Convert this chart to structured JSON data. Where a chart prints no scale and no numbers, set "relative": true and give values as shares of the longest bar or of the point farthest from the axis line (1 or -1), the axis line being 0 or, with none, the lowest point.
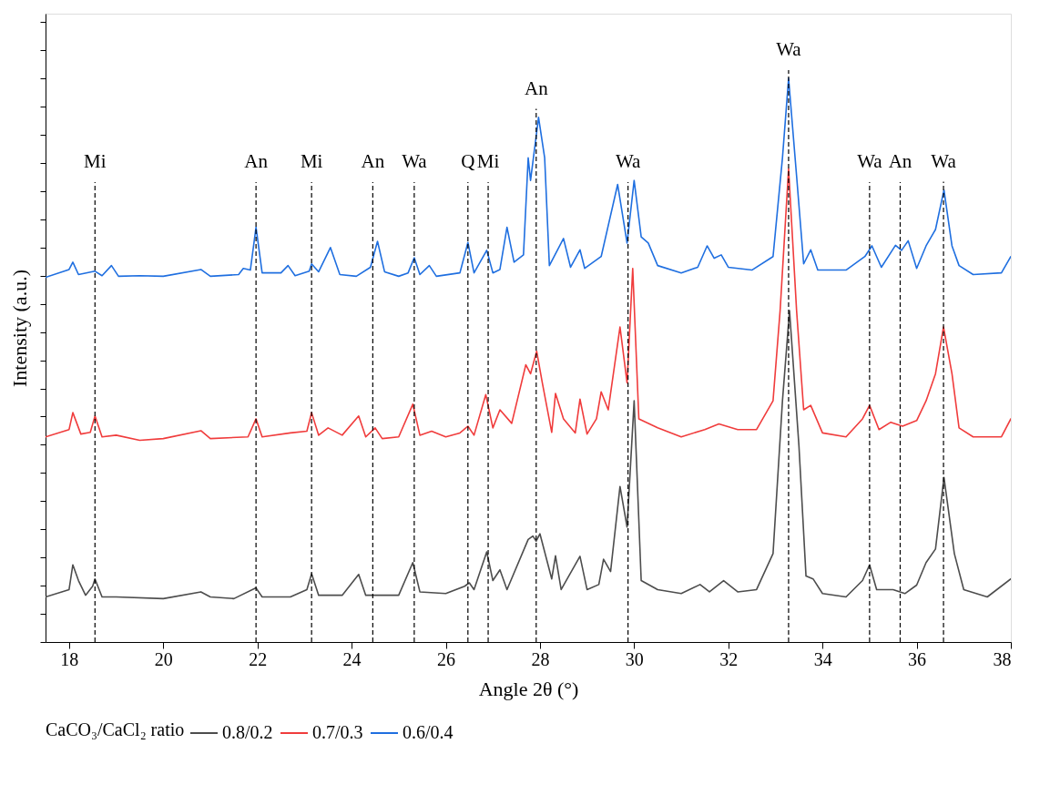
{
  "chart_data": {
    "type": "line",
    "relative": true,
    "xlabel": "Angle 2θ (°)",
    "ylabel": "Intensity (a.u.)",
    "legend_title": "CaCO₃/CaCl₂ ratio",
    "legend": "bottom",
    "tick_labels": "x",
    "line_style": "solid",
    "xlim": [
      17.5,
      38
    ],
    "xticks": [
      18,
      20,
      22,
      24,
      26,
      28,
      30,
      32,
      34,
      36,
      38
    ],
    "series": [
      {
        "name": "0.8/0.2",
        "color": "#4d4d4d",
        "x": [
          17.5,
          18.0,
          18.08,
          18.2,
          18.35,
          18.5,
          18.55,
          18.7,
          19.0,
          20.0,
          20.8,
          21.0,
          21.5,
          21.97,
          22.1,
          22.7,
          23.05,
          23.15,
          23.3,
          23.8,
          24.15,
          24.3,
          25.0,
          25.3,
          25.45,
          26.0,
          26.4,
          26.5,
          26.6,
          26.87,
          27.0,
          27.15,
          27.3,
          27.75,
          27.85,
          27.92,
          28.0,
          28.25,
          28.33,
          28.45,
          28.85,
          29.0,
          29.25,
          29.35,
          29.5,
          29.7,
          29.85,
          30.0,
          30.15,
          30.5,
          31.0,
          31.4,
          31.6,
          31.9,
          32.2,
          32.6,
          32.95,
          33.15,
          33.3,
          33.5,
          33.65,
          33.8,
          34.0,
          34.5,
          34.85,
          35.0,
          35.15,
          35.5,
          35.75,
          36.0,
          36.2,
          36.4,
          36.58,
          36.8,
          37.0,
          37.5,
          38.0
        ],
        "values": [
          0.08,
          0.093,
          0.137,
          0.109,
          0.083,
          0.099,
          0.112,
          0.08,
          0.08,
          0.077,
          0.089,
          0.08,
          0.077,
          0.096,
          0.08,
          0.08,
          0.093,
          0.121,
          0.083,
          0.083,
          0.12,
          0.083,
          0.083,
          0.141,
          0.089,
          0.086,
          0.099,
          0.105,
          0.093,
          0.16,
          0.109,
          0.128,
          0.093,
          0.182,
          0.188,
          0.179,
          0.192,
          0.112,
          0.153,
          0.093,
          0.152,
          0.093,
          0.102,
          0.147,
          0.125,
          0.276,
          0.204,
          0.428,
          0.109,
          0.093,
          0.086,
          0.102,
          0.089,
          0.109,
          0.089,
          0.093,
          0.157,
          0.428,
          0.588,
          0.348,
          0.117,
          0.112,
          0.086,
          0.08,
          0.109,
          0.137,
          0.093,
          0.093,
          0.086,
          0.101,
          0.141,
          0.165,
          0.292,
          0.157,
          0.093,
          0.08,
          0.112
        ]
      },
      {
        "name": "0.7/0.3",
        "color": "#f03c3c",
        "x": [
          17.5,
          18.0,
          18.08,
          18.25,
          18.45,
          18.55,
          18.7,
          19.0,
          19.5,
          20.0,
          20.8,
          21.0,
          21.8,
          21.97,
          22.1,
          22.7,
          23.05,
          23.15,
          23.3,
          23.5,
          23.8,
          24.15,
          24.3,
          24.5,
          24.65,
          25.0,
          25.3,
          25.45,
          25.7,
          26.0,
          26.3,
          26.47,
          26.6,
          26.85,
          27.0,
          27.15,
          27.4,
          27.7,
          27.8,
          27.93,
          28.05,
          28.25,
          28.33,
          28.5,
          28.75,
          28.85,
          29.0,
          29.2,
          29.3,
          29.45,
          29.7,
          29.85,
          29.97,
          30.1,
          30.5,
          31.0,
          31.5,
          31.8,
          32.2,
          32.6,
          32.95,
          33.1,
          33.28,
          33.45,
          33.6,
          33.75,
          34.0,
          34.5,
          34.85,
          35.0,
          35.2,
          35.45,
          35.7,
          36.0,
          36.2,
          36.4,
          36.57,
          36.75,
          36.9,
          37.2,
          37.8,
          38.0
        ],
        "values": [
          0.364,
          0.377,
          0.407,
          0.369,
          0.372,
          0.401,
          0.364,
          0.367,
          0.358,
          0.361,
          0.375,
          0.361,
          0.364,
          0.396,
          0.364,
          0.371,
          0.374,
          0.407,
          0.367,
          0.38,
          0.367,
          0.401,
          0.364,
          0.38,
          0.361,
          0.364,
          0.422,
          0.367,
          0.374,
          0.364,
          0.371,
          0.383,
          0.367,
          0.439,
          0.38,
          0.412,
          0.388,
          0.492,
          0.476,
          0.516,
          0.46,
          0.372,
          0.441,
          0.396,
          0.371,
          0.431,
          0.369,
          0.396,
          0.444,
          0.412,
          0.559,
          0.46,
          0.663,
          0.396,
          0.38,
          0.364,
          0.377,
          0.387,
          0.377,
          0.377,
          0.428,
          0.588,
          0.84,
          0.588,
          0.412,
          0.42,
          0.371,
          0.364,
          0.396,
          0.42,
          0.377,
          0.39,
          0.383,
          0.393,
          0.428,
          0.476,
          0.559,
          0.476,
          0.38,
          0.364,
          0.364,
          0.396
        ]
      },
      {
        "name": "0.6/0.4",
        "color": "#1f6fe0",
        "x": [
          17.5,
          18.0,
          18.08,
          18.2,
          18.55,
          18.7,
          18.9,
          19.05,
          19.5,
          20.0,
          20.8,
          21.0,
          21.6,
          21.7,
          21.85,
          21.97,
          22.1,
          22.5,
          22.65,
          22.8,
          23.1,
          23.15,
          23.3,
          23.55,
          23.75,
          24.1,
          24.4,
          24.55,
          24.7,
          25.0,
          25.2,
          25.33,
          25.45,
          25.65,
          25.8,
          26.3,
          26.47,
          26.6,
          26.87,
          27.0,
          27.15,
          27.3,
          27.45,
          27.65,
          27.75,
          27.8,
          27.97,
          28.1,
          28.2,
          28.5,
          28.65,
          28.85,
          28.95,
          29.3,
          29.65,
          29.85,
          30.0,
          30.15,
          30.3,
          30.5,
          31.0,
          31.35,
          31.55,
          31.7,
          31.85,
          32.0,
          32.5,
          32.95,
          33.15,
          33.28,
          33.45,
          33.6,
          33.75,
          33.9,
          34.5,
          34.9,
          35.05,
          35.25,
          35.55,
          35.68,
          35.82,
          36.0,
          36.2,
          36.4,
          36.58,
          36.75,
          36.9,
          37.2,
          37.8,
          38.0
        ],
        "values": [
          0.647,
          0.661,
          0.674,
          0.652,
          0.658,
          0.65,
          0.668,
          0.649,
          0.65,
          0.649,
          0.661,
          0.649,
          0.652,
          0.663,
          0.66,
          0.736,
          0.655,
          0.655,
          0.668,
          0.65,
          0.658,
          0.671,
          0.657,
          0.7,
          0.652,
          0.649,
          0.665,
          0.711,
          0.657,
          0.649,
          0.655,
          0.682,
          0.652,
          0.668,
          0.649,
          0.655,
          0.709,
          0.655,
          0.695,
          0.655,
          0.661,
          0.736,
          0.674,
          0.687,
          0.859,
          0.819,
          0.931,
          0.859,
          0.668,
          0.716,
          0.665,
          0.696,
          0.663,
          0.684,
          0.812,
          0.708,
          0.819,
          0.719,
          0.708,
          0.668,
          0.655,
          0.665,
          0.703,
          0.681,
          0.687,
          0.665,
          0.66,
          0.684,
          0.859,
          1.0,
          0.827,
          0.671,
          0.696,
          0.66,
          0.66,
          0.684,
          0.703,
          0.665,
          0.704,
          0.695,
          0.712,
          0.663,
          0.703,
          0.732,
          0.802,
          0.703,
          0.668,
          0.652,
          0.655,
          0.684
        ]
      }
    ],
    "ref_lines": [
      {
        "axis": "x",
        "value": 18.55,
        "label": "Mi",
        "color": "#000000",
        "line_style": "dashed"
      },
      {
        "axis": "x",
        "value": 21.97,
        "label": "An",
        "color": "#000000",
        "line_style": "dashed"
      },
      {
        "axis": "x",
        "value": 23.15,
        "label": "Mi",
        "color": "#000000",
        "line_style": "dashed"
      },
      {
        "axis": "x",
        "value": 24.45,
        "label": "An",
        "color": "#000000",
        "line_style": "dashed"
      },
      {
        "axis": "x",
        "value": 25.33,
        "label": "Wa",
        "color": "#000000",
        "line_style": "dashed"
      },
      {
        "axis": "x",
        "value": 26.47,
        "label": "Q",
        "color": "#000000",
        "line_style": "dashed"
      },
      {
        "axis": "x",
        "value": 26.9,
        "label": "Mi",
        "color": "#000000",
        "line_style": "dashed"
      },
      {
        "axis": "x",
        "value": 27.92,
        "label": "An",
        "color": "#000000",
        "line_style": "dashed"
      },
      {
        "axis": "x",
        "value": 29.87,
        "label": "Wa",
        "color": "#000000",
        "line_style": "dashed"
      },
      {
        "axis": "x",
        "value": 33.28,
        "label": "Wa",
        "color": "#000000",
        "line_style": "dashed"
      },
      {
        "axis": "x",
        "value": 35.0,
        "label": "Wa",
        "color": "#000000",
        "line_style": "dashed"
      },
      {
        "axis": "x",
        "value": 35.65,
        "label": "An",
        "color": "#000000",
        "line_style": "dashed"
      },
      {
        "axis": "x",
        "value": 36.57,
        "label": "Wa",
        "color": "#000000",
        "line_style": "dashed"
      }
    ]
  }
}
